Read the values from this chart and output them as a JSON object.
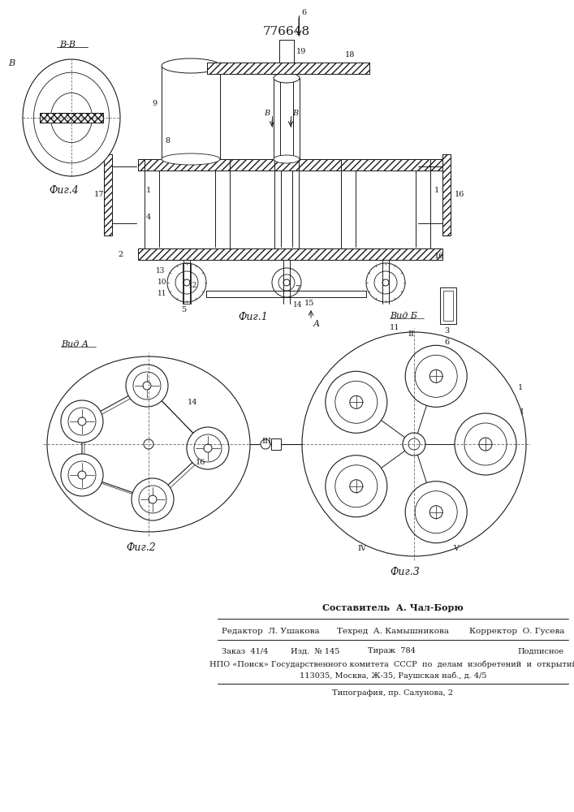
{
  "title": "776648",
  "bg_color": "#ffffff",
  "line_color": "#1a1a1a",
  "fig1_caption": "Фиг.1",
  "fig2_caption": "Фиг.2",
  "fig3_caption": "Фиг.3",
  "fig4_caption": "Фиг.4",
  "vid_a": "Вид А",
  "vid_b": "Вид Б",
  "bb_label": "В-В",
  "footer_composer": "Составитель  А. Чал-Борю",
  "footer_editor": "Редактор  Л. Ушакова",
  "footer_tech": "Техред  А. Камышникова",
  "footer_corr": "Корректор  О. Гусева",
  "footer_order": "Заказ  41/4",
  "footer_izd": "Изд.  № 145",
  "footer_tirazh": "Тираж  784",
  "footer_podp": "Подписное",
  "footer_npo": "НПО «Поиск» Государственного комитета  СССР  по  делам  изобретений  и  открытий",
  "footer_addr": "113035, Москва, Ж-35, Раушская наб., д. 4/5",
  "footer_typo": "Типография, пр. Салунова, 2"
}
